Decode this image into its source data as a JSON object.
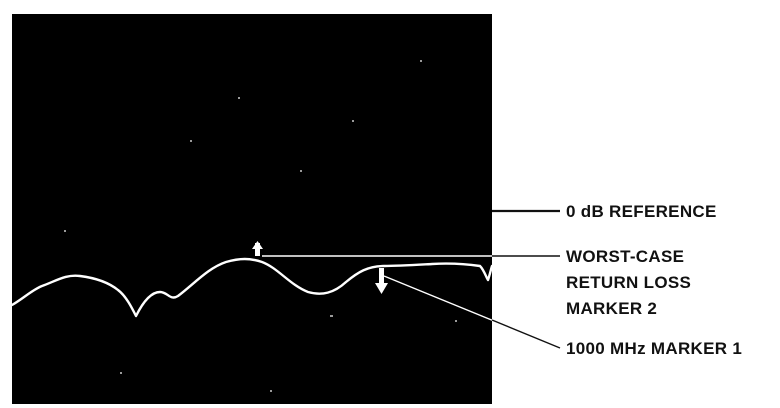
{
  "figure": {
    "colors": {
      "screen": "#000000",
      "trace": "#ffffff",
      "leader": "#111111",
      "label": "#111111",
      "background": "#ffffff"
    },
    "callouts": [
      {
        "id": "reference",
        "lines": [
          "0 dB REFERENCE"
        ]
      },
      {
        "id": "worst-case",
        "lines": [
          "WORST-CASE",
          "RETURN LOSS",
          "MARKER 2"
        ]
      },
      {
        "id": "marker-1",
        "lines": [
          "1000 MHz MARKER 1"
        ]
      }
    ],
    "markers": [
      {
        "id": "marker-2",
        "icon": "marker-arrow-up-icon"
      },
      {
        "id": "marker-1",
        "icon": "marker-arrow-down-icon"
      }
    ]
  }
}
